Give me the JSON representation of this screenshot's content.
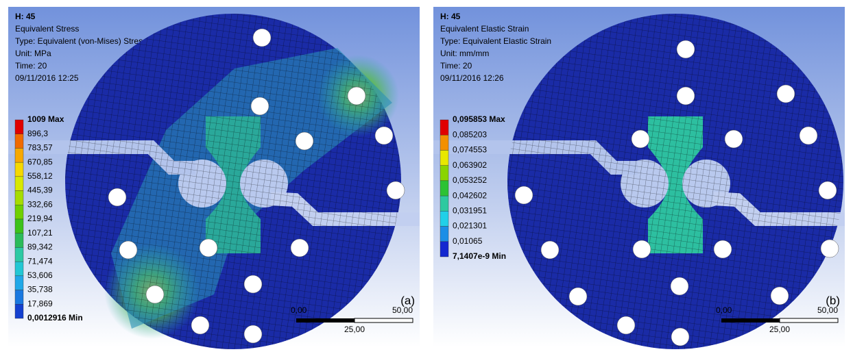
{
  "panels": [
    {
      "header": [
        "H: 45",
        "Equivalent Stress",
        "Type: Equivalent (von-Mises) Stress - Top/Bottom",
        "Unit: MPa",
        "Time: 20",
        "09/11/2016 12:25"
      ],
      "legend": [
        "1009 Max",
        "896,3",
        "783,57",
        "670,85",
        "558,12",
        "445,39",
        "332,66",
        "219,94",
        "107,21",
        "89,342",
        "71,474",
        "53,606",
        "35,738",
        "17,869",
        "0,0012916 Min"
      ],
      "scale": {
        "start": "0,00",
        "end": "50,00",
        "mid": "25,00"
      },
      "label": "(a)"
    },
    {
      "header": [
        "H: 45",
        "Equivalent Elastic Strain",
        "Type: Equivalent Elastic Strain",
        "Unit: mm/mm",
        "Time: 20",
        "09/11/2016 12:26"
      ],
      "legend": [
        "0,095853 Max",
        "0,085203",
        "0,074553",
        "0,063902",
        "0,053252",
        "0,042602",
        "0,031951",
        "0,021301",
        "0,01065",
        "7,1407e-9 Min"
      ],
      "scale": {
        "start": "0,00",
        "end": "50,00",
        "mid": "25,00"
      },
      "label": "(b)"
    }
  ]
}
